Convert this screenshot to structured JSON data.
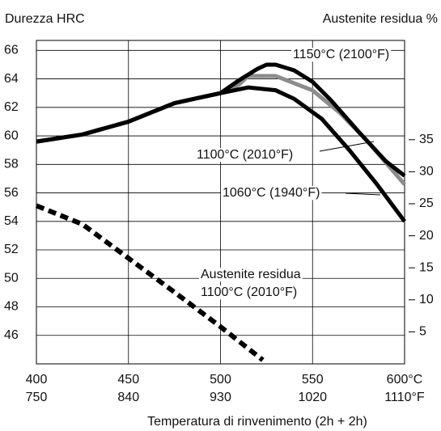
{
  "chart_data": {
    "type": "line",
    "ylabel": "Durezza HRC",
    "y2label": "Austenite residua %",
    "xlabel": "Temperatura di rinvenimento (2h + 2h)",
    "xlim": [
      400,
      600
    ],
    "xticks": [
      {
        "value": 400,
        "label": "400"
      },
      {
        "value": 450,
        "label": "450"
      },
      {
        "value": 500,
        "label": "500"
      },
      {
        "value": 550,
        "label": "550"
      },
      {
        "value": 600,
        "label": "600°C"
      }
    ],
    "xticks_secondary": [
      {
        "value": 400,
        "label": "750"
      },
      {
        "value": 450,
        "label": "840"
      },
      {
        "value": 500,
        "label": "930"
      },
      {
        "value": 550,
        "label": "1020"
      },
      {
        "value": 600,
        "label": "1110°F"
      }
    ],
    "ylim": [
      44,
      66.7
    ],
    "yticks": [
      46,
      48,
      50,
      52,
      54,
      56,
      58,
      60,
      62,
      64,
      66
    ],
    "y2lim": [
      0,
      50.5
    ],
    "y2ticks": [
      5,
      10,
      15,
      20,
      25,
      30,
      35
    ],
    "grid": true,
    "series": [
      {
        "name": "1100°C (2010°F)",
        "color": "#8c8c8c",
        "dash": false,
        "x": [
          400,
          425,
          450,
          475,
          500,
          510,
          515,
          530,
          550,
          565,
          580,
          600
        ],
        "values": [
          59.6,
          60.1,
          61.0,
          62.3,
          63.0,
          63.6,
          64.2,
          64.2,
          63.2,
          61.6,
          59.6,
          56.6
        ]
      },
      {
        "name": "1060°C (1940°F)",
        "color": "#000000",
        "dash": false,
        "x": [
          400,
          425,
          450,
          475,
          500,
          515,
          530,
          540,
          555,
          570,
          585,
          600
        ],
        "values": [
          59.6,
          60.1,
          61.0,
          62.3,
          63.0,
          63.4,
          63.2,
          62.6,
          61.2,
          59.0,
          56.6,
          54.0
        ]
      },
      {
        "name": "1150°C (2100°F)",
        "color": "#000000",
        "dash": false,
        "x": [
          400,
          425,
          450,
          475,
          500,
          510,
          520,
          525,
          530,
          540,
          550,
          560,
          575,
          590,
          600
        ],
        "values": [
          59.6,
          60.1,
          61.0,
          62.3,
          63.0,
          63.9,
          64.7,
          65.0,
          65.0,
          64.6,
          63.8,
          62.5,
          60.3,
          58.2,
          57.2
        ]
      },
      {
        "name": "Austenite residua",
        "color": "#000000",
        "dash": true,
        "axis": "y2",
        "x": [
          400,
          425,
          450,
          475,
          500,
          523
        ],
        "values": [
          24.7,
          21.8,
          16.5,
          11.2,
          5.8,
          0.6
        ]
      }
    ],
    "annotations": [
      "1100°C (2010°F)"
    ]
  }
}
